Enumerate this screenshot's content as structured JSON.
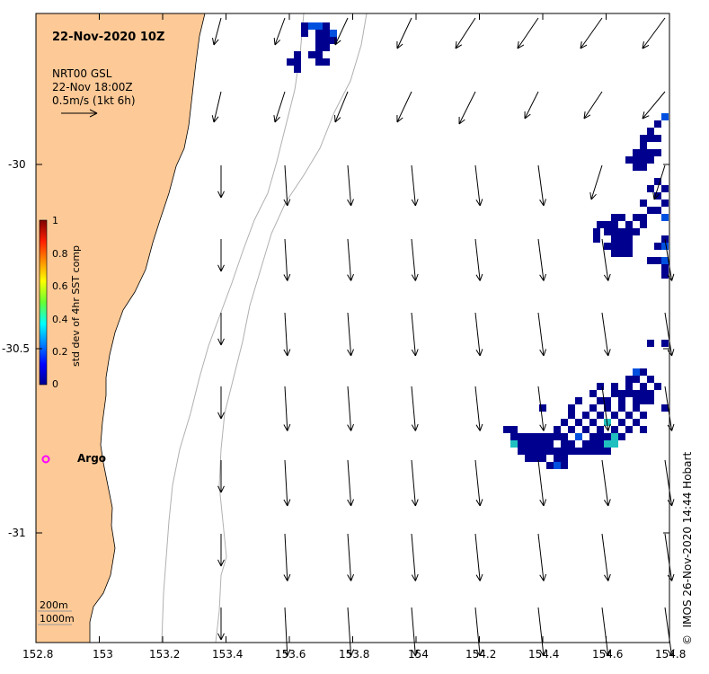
{
  "map": {
    "title": "22-Nov-2020 10Z",
    "legend_lines": [
      "NRT00 GSL",
      "22-Nov 18:00Z",
      "0.5m/s (1kt 6h)"
    ],
    "argo_label": "Argo",
    "depth_labels": [
      "200m",
      "1000m"
    ],
    "credit": "IMOS 26-Nov-2020 14:44 Hobart",
    "credit_symbol": "©",
    "x_ticks": [
      "152.8",
      "153",
      "153.2",
      "153.4",
      "153.6",
      "153.8",
      "154",
      "154.2",
      "154.4",
      "154.6",
      "154.8"
    ],
    "y_ticks": [
      "-30",
      "-30.5",
      "-31"
    ],
    "colorbar": {
      "title": "std dev of 4hr SST comp",
      "ticks": [
        "1",
        "0.8",
        "0.6",
        "0.4",
        "0.2",
        "0"
      ],
      "range": [
        0,
        1
      ]
    },
    "colors": {
      "land": "#fdc996",
      "isobath": "#b0b0b0",
      "argo": "#ff00ff",
      "sst_dark": "#00008f",
      "sst_mid": "#0050e0",
      "sst_cyan": "#20c0c0"
    },
    "axis_ranges": {
      "lon": [
        152.8,
        154.8
      ],
      "lat": [
        -31.25,
        -29.59
      ]
    }
  }
}
